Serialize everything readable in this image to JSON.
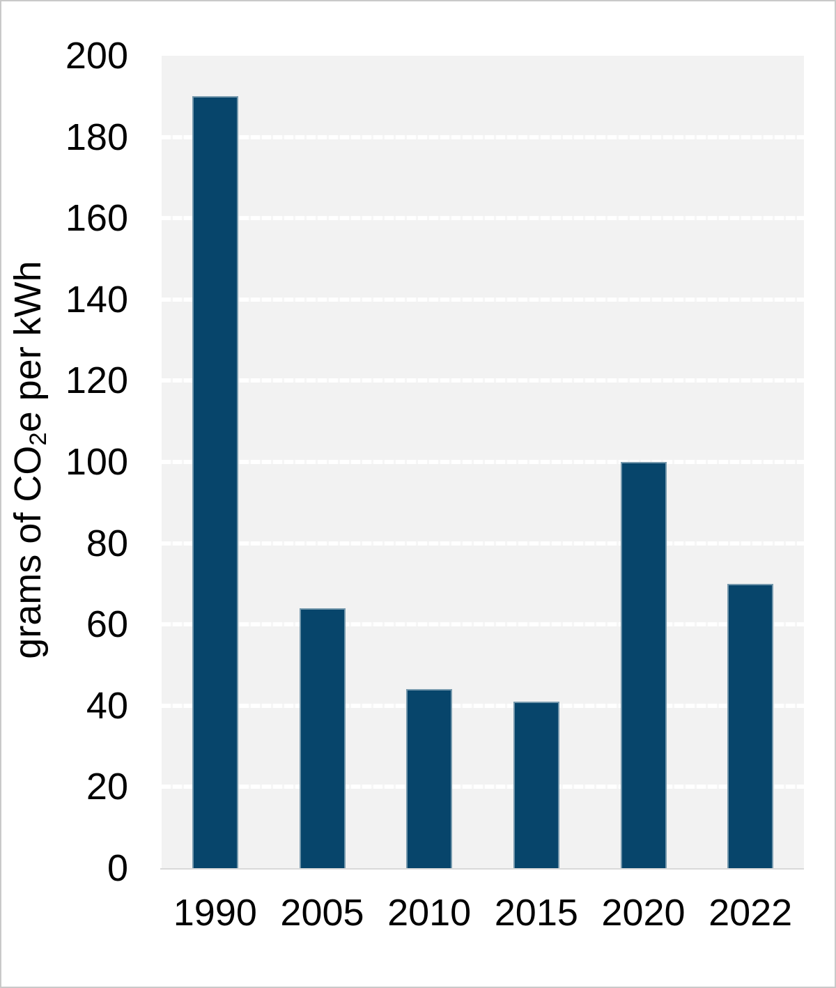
{
  "chart_data": {
    "type": "bar",
    "title": "",
    "xlabel": "",
    "ylabel": "grams of CO2e per kWh",
    "ylabel_parts": {
      "prefix": "grams of CO",
      "sub": "2",
      "suffix": "e per kWh"
    },
    "categories": [
      "1990",
      "2005",
      "2010",
      "2015",
      "2020",
      "2022"
    ],
    "values": [
      190,
      64,
      44,
      41,
      100,
      70
    ],
    "y_ticks": [
      0,
      20,
      40,
      60,
      80,
      100,
      120,
      140,
      160,
      180,
      200
    ],
    "ylim": [
      0,
      200
    ],
    "grid": "horizontal white dashed lines on gray plot background",
    "legend": "none",
    "colors": {
      "bar": "#07456b",
      "plot_bg": "#f2f2f2",
      "gridline": "#ffffff",
      "axis_line": "#d9d9d9",
      "text": "#000000",
      "frame_border": "#c9c9c9"
    }
  }
}
